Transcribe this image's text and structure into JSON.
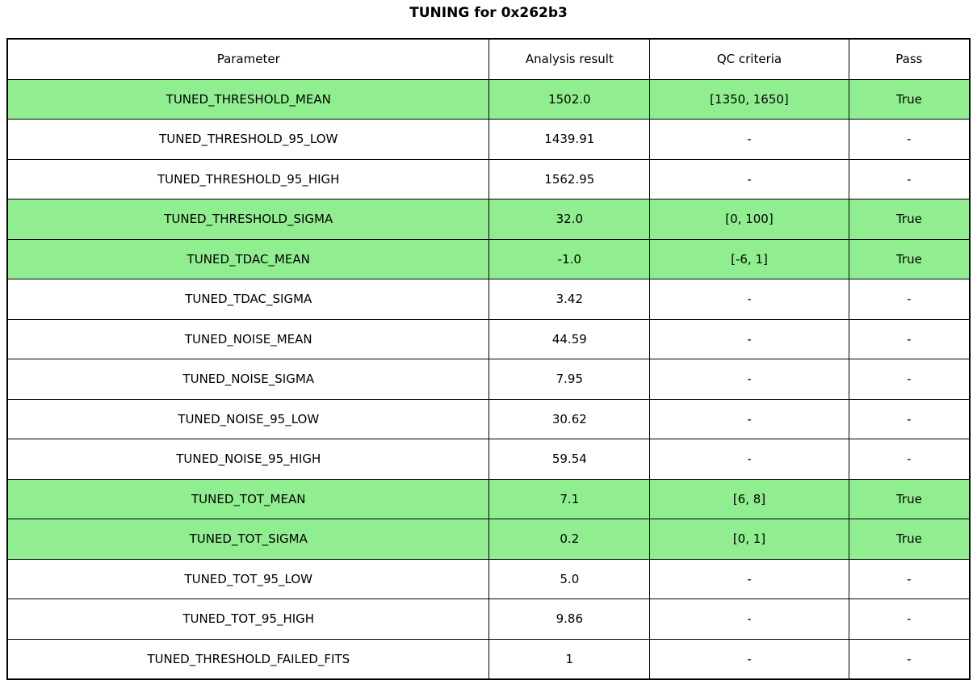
{
  "title": "TUNING for 0x262b3",
  "colors": {
    "highlight_row_bg": "#90EE90",
    "border": "#000000",
    "text": "#000000",
    "background": "#ffffff"
  },
  "chart_data": {
    "type": "table",
    "title": "TUNING for 0x262b3",
    "columns": [
      "Parameter",
      "Analysis result",
      "QC criteria",
      "Pass"
    ],
    "rows": [
      {
        "parameter": "TUNED_THRESHOLD_MEAN",
        "analysis_result": "1502.0",
        "qc_criteria": "[1350, 1650]",
        "pass": "True",
        "highlighted": true
      },
      {
        "parameter": "TUNED_THRESHOLD_95_LOW",
        "analysis_result": "1439.91",
        "qc_criteria": "-",
        "pass": "-",
        "highlighted": false
      },
      {
        "parameter": "TUNED_THRESHOLD_95_HIGH",
        "analysis_result": "1562.95",
        "qc_criteria": "-",
        "pass": "-",
        "highlighted": false
      },
      {
        "parameter": "TUNED_THRESHOLD_SIGMA",
        "analysis_result": "32.0",
        "qc_criteria": "[0, 100]",
        "pass": "True",
        "highlighted": true
      },
      {
        "parameter": "TUNED_TDAC_MEAN",
        "analysis_result": "-1.0",
        "qc_criteria": "[-6, 1]",
        "pass": "True",
        "highlighted": true
      },
      {
        "parameter": "TUNED_TDAC_SIGMA",
        "analysis_result": "3.42",
        "qc_criteria": "-",
        "pass": "-",
        "highlighted": false
      },
      {
        "parameter": "TUNED_NOISE_MEAN",
        "analysis_result": "44.59",
        "qc_criteria": "-",
        "pass": "-",
        "highlighted": false
      },
      {
        "parameter": "TUNED_NOISE_SIGMA",
        "analysis_result": "7.95",
        "qc_criteria": "-",
        "pass": "-",
        "highlighted": false
      },
      {
        "parameter": "TUNED_NOISE_95_LOW",
        "analysis_result": "30.62",
        "qc_criteria": "-",
        "pass": "-",
        "highlighted": false
      },
      {
        "parameter": "TUNED_NOISE_95_HIGH",
        "analysis_result": "59.54",
        "qc_criteria": "-",
        "pass": "-",
        "highlighted": false
      },
      {
        "parameter": "TUNED_TOT_MEAN",
        "analysis_result": "7.1",
        "qc_criteria": "[6, 8]",
        "pass": "True",
        "highlighted": true
      },
      {
        "parameter": "TUNED_TOT_SIGMA",
        "analysis_result": "0.2",
        "qc_criteria": "[0, 1]",
        "pass": "True",
        "highlighted": true
      },
      {
        "parameter": "TUNED_TOT_95_LOW",
        "analysis_result": "5.0",
        "qc_criteria": "-",
        "pass": "-",
        "highlighted": false
      },
      {
        "parameter": "TUNED_TOT_95_HIGH",
        "analysis_result": "9.86",
        "qc_criteria": "-",
        "pass": "-",
        "highlighted": false
      },
      {
        "parameter": "TUNED_THRESHOLD_FAILED_FITS",
        "analysis_result": "1",
        "qc_criteria": "-",
        "pass": "-",
        "highlighted": false
      }
    ]
  }
}
